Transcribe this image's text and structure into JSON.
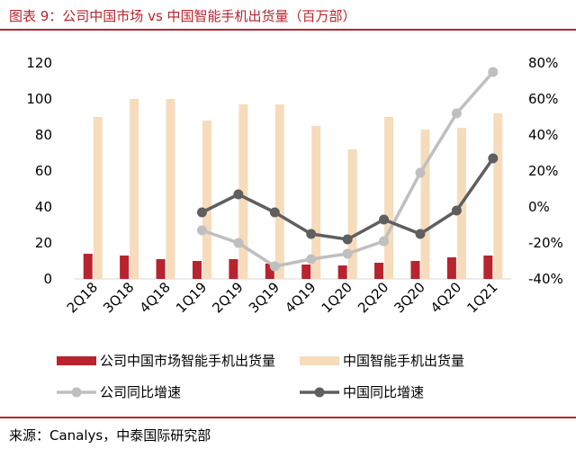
{
  "title": "图表 9：公司中国市场 vs 中国智能手机出货量（百万部）",
  "source": "来源：Canalys，中泰国际研究部",
  "colors": {
    "accent": "#b8232e",
    "company_bar": "#b8232e",
    "market_bar": "#f6dcbc",
    "company_line": "#bfbfbf",
    "market_line": "#5f5f5f"
  },
  "chart_data": {
    "type": "bar",
    "categories": [
      "2Q18",
      "3Q18",
      "4Q18",
      "1Q19",
      "2Q19",
      "3Q19",
      "4Q19",
      "1Q20",
      "2Q20",
      "3Q20",
      "4Q20",
      "1Q21"
    ],
    "left_axis": {
      "ylim": [
        0,
        120
      ],
      "ticks": [
        "0",
        "20",
        "40",
        "60",
        "80",
        "100",
        "120"
      ]
    },
    "right_axis": {
      "ylim": [
        -40,
        80
      ],
      "ticks": [
        "-40%",
        "-20%",
        "0%",
        "20%",
        "40%",
        "60%",
        "80%"
      ]
    },
    "series": [
      {
        "name": "公司中国市场智能手机出货量",
        "kind": "bar",
        "axis": "left",
        "color": "#b8232e",
        "values": [
          14,
          13,
          11,
          10,
          11,
          8.5,
          8,
          7.5,
          9,
          10,
          12,
          13
        ]
      },
      {
        "name": "中国智能手机出货量",
        "kind": "bar",
        "axis": "left",
        "color": "#f6dcbc",
        "values": [
          90,
          100,
          100,
          88,
          97,
          97,
          85,
          72,
          90,
          83,
          84,
          92
        ]
      },
      {
        "name": "公司同比增速",
        "kind": "line",
        "axis": "right",
        "color": "#bfbfbf",
        "values": [
          null,
          null,
          null,
          -13,
          -20,
          -33,
          -29,
          -26,
          -19,
          19,
          52,
          75
        ]
      },
      {
        "name": "中国同比增速",
        "kind": "line",
        "axis": "right",
        "color": "#5f5f5f",
        "values": [
          null,
          null,
          null,
          -3,
          7,
          -3,
          -15,
          -18,
          -7,
          -15,
          -2,
          27
        ]
      }
    ],
    "legend_position": "bottom"
  }
}
